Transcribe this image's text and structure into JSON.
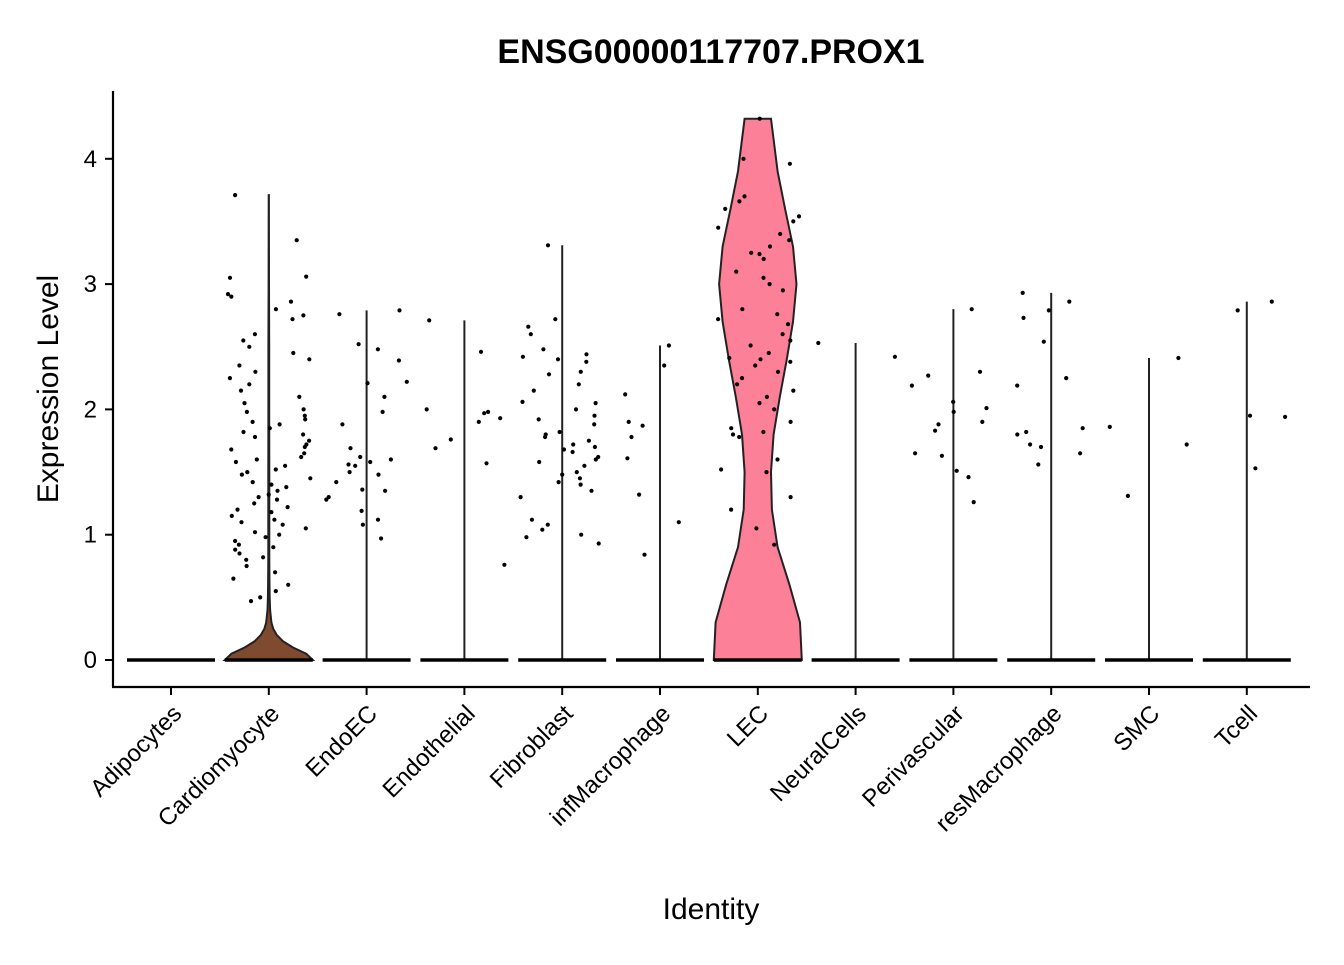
{
  "chart_data": {
    "type": "violin",
    "title": "ENSG00000117707.PROX1",
    "xlabel": "Identity",
    "ylabel": "Expression Level",
    "ylim": [
      -0.2,
      4.55
    ],
    "yticks": [
      "0",
      "1",
      "2",
      "3",
      "4"
    ],
    "categories": [
      "Adipocytes",
      "Cardiomyocyte",
      "EndoEC",
      "Endothelial",
      "Fibroblast",
      "infMacrophage",
      "LEC",
      "NeuralCells",
      "Perivascular",
      "resMacrophage",
      "SMC",
      "Tcell"
    ],
    "colors": [
      "#F8766D",
      "#7F4A2F",
      "#C49A00",
      "#7CAE00",
      "#00C08B",
      "#00B4C4",
      "#FC8097",
      "#00A9FF",
      "#7A8CFF",
      "#C77CFF",
      "#E76BF3",
      "#FF61C3"
    ],
    "max_expression": [
      0,
      3.71,
      2.79,
      2.71,
      3.31,
      2.51,
      4.32,
      2.53,
      2.8,
      2.93,
      2.41,
      2.86
    ],
    "violins": [
      null,
      {
        "y": [
          0,
          0.05,
          0.1,
          0.15,
          0.2,
          0.25,
          0.3,
          0.4,
          0.5,
          0.6,
          0.8,
          1.0,
          1.5,
          2.0,
          2.5,
          3.0,
          3.71
        ],
        "w": [
          1.0,
          0.85,
          0.55,
          0.32,
          0.18,
          0.1,
          0.06,
          0.03,
          0.02,
          0.015,
          0.012,
          0.012,
          0.012,
          0.01,
          0.008,
          0.005,
          0.003
        ]
      },
      null,
      null,
      null,
      null,
      {
        "y": [
          0,
          0.3,
          0.6,
          0.9,
          1.2,
          1.5,
          1.8,
          2.1,
          2.4,
          2.7,
          3.0,
          3.3,
          3.6,
          3.9,
          4.32
        ],
        "w": [
          1.0,
          0.96,
          0.72,
          0.45,
          0.32,
          0.3,
          0.36,
          0.5,
          0.66,
          0.8,
          0.88,
          0.8,
          0.62,
          0.45,
          0.3
        ]
      },
      null,
      null,
      null,
      null,
      null
    ],
    "points": [
      [],
      [
        3.71,
        3.35,
        3.06,
        3.05,
        2.92,
        2.9,
        2.86,
        2.8,
        2.75,
        2.72,
        2.6,
        2.55,
        2.5,
        2.45,
        2.4,
        2.35,
        2.3,
        2.25,
        2.2,
        2.15,
        2.1,
        2.05,
        2.0,
        1.98,
        1.95,
        1.92,
        1.9,
        1.88,
        1.85,
        1.82,
        1.8,
        1.78,
        1.75,
        1.72,
        1.7,
        1.68,
        1.65,
        1.62,
        1.6,
        1.58,
        1.55,
        1.52,
        1.5,
        1.48,
        1.45,
        1.42,
        1.4,
        1.38,
        1.35,
        1.32,
        1.3,
        1.28,
        1.25,
        1.22,
        1.2,
        1.18,
        1.15,
        1.12,
        1.1,
        1.08,
        1.05,
        1.02,
        1.0,
        0.98,
        0.95,
        0.92,
        0.9,
        0.88,
        0.85,
        0.82,
        0.8,
        0.75,
        0.7,
        0.65,
        0.6,
        0.55,
        0.5,
        0.47
      ],
      [
        2.79,
        2.76,
        2.52,
        2.48,
        2.39,
        2.22,
        2.21,
        2.1,
        1.98,
        1.88,
        1.69,
        1.62,
        1.6,
        1.58,
        1.56,
        1.55,
        1.5,
        1.48,
        1.42,
        1.36,
        1.35,
        1.3,
        1.28,
        1.19,
        1.12,
        1.08,
        0.97
      ],
      [
        2.71,
        2.46,
        2.0,
        1.98,
        1.97,
        1.93,
        1.9,
        1.76,
        1.69,
        1.57,
        0.76
      ],
      [
        3.31,
        2.72,
        2.66,
        2.6,
        2.48,
        2.44,
        2.42,
        2.4,
        2.38,
        2.3,
        2.28,
        2.2,
        2.15,
        2.06,
        2.05,
        2.0,
        1.95,
        1.92,
        1.88,
        1.82,
        1.8,
        1.78,
        1.75,
        1.72,
        1.7,
        1.68,
        1.66,
        1.62,
        1.6,
        1.58,
        1.55,
        1.5,
        1.48,
        1.45,
        1.42,
        1.4,
        1.35,
        1.3,
        1.12,
        1.08,
        1.04,
        1.0,
        0.98,
        0.93
      ],
      [
        2.51,
        2.35,
        2.12,
        1.9,
        1.87,
        1.78,
        1.61,
        1.32,
        1.1,
        0.84
      ],
      [
        4.32,
        4.0,
        3.96,
        3.7,
        3.66,
        3.6,
        3.54,
        3.5,
        3.45,
        3.4,
        3.35,
        3.3,
        3.25,
        3.24,
        3.2,
        3.1,
        3.05,
        3.0,
        2.95,
        2.8,
        2.76,
        2.72,
        2.68,
        2.6,
        2.55,
        2.51,
        2.45,
        2.41,
        2.4,
        2.38,
        2.35,
        2.3,
        2.25,
        2.2,
        2.15,
        2.1,
        2.05,
        2.0,
        1.9,
        1.85,
        1.82,
        1.8,
        1.78,
        1.6,
        1.52,
        1.5,
        1.3,
        1.2,
        1.05,
        0.92
      ],
      [
        2.53,
        2.42
      ],
      [
        2.8,
        2.3,
        2.27,
        2.19,
        2.06,
        2.01,
        1.98,
        1.9,
        1.88,
        1.83,
        1.65,
        1.63,
        1.51,
        1.46,
        1.26
      ],
      [
        2.93,
        2.86,
        2.79,
        2.73,
        2.54,
        2.25,
        2.19,
        1.85,
        1.82,
        1.8,
        1.72,
        1.7,
        1.65,
        1.56
      ],
      [
        2.41,
        1.86,
        1.72,
        1.31
      ],
      [
        2.86,
        2.79,
        1.95,
        1.94,
        1.53
      ]
    ]
  }
}
